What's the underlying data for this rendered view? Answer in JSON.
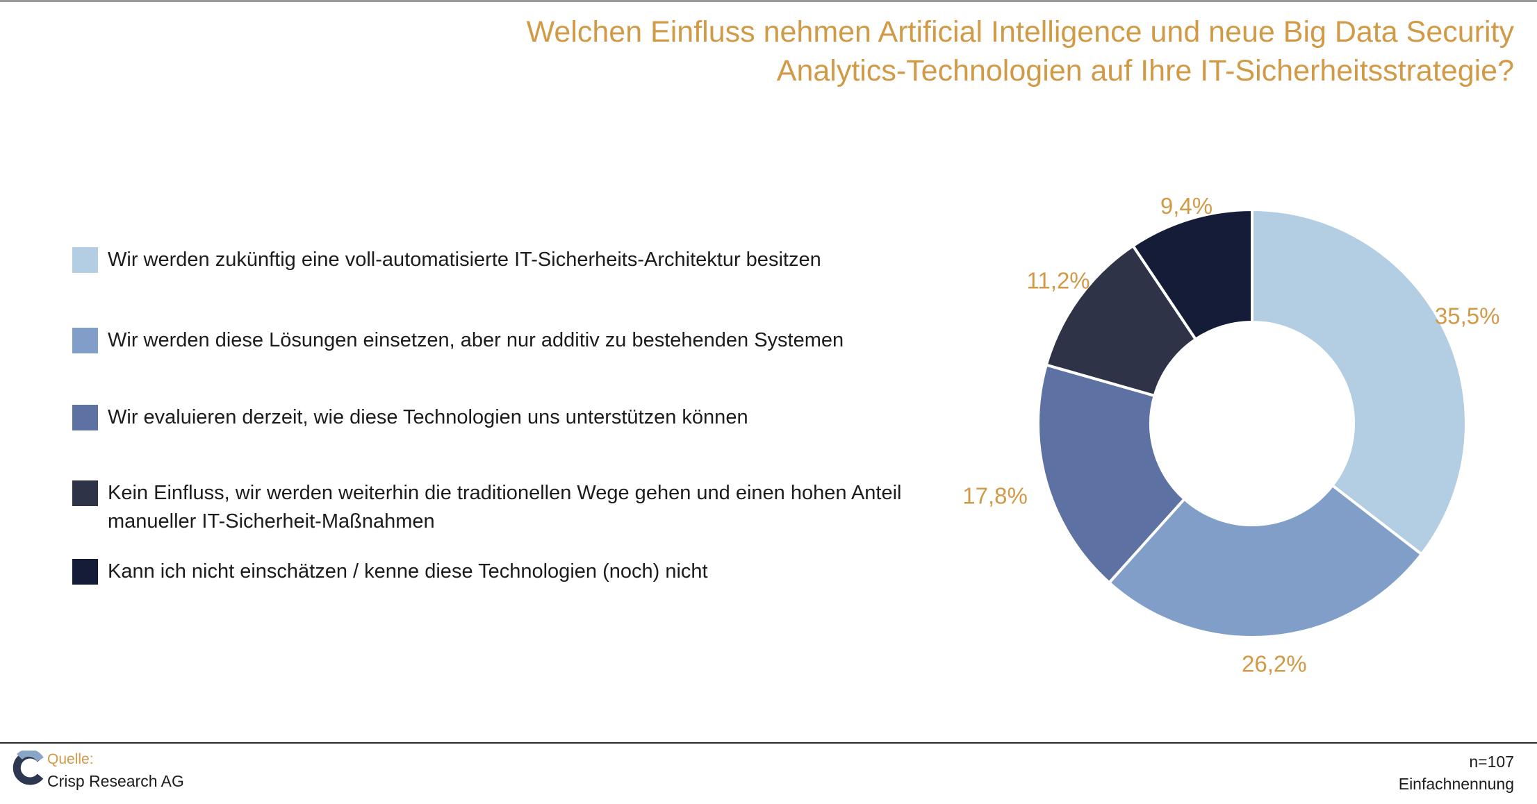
{
  "title": {
    "line1": "Welchen Einfluss nehmen Artificial Intelligence und neue Big Data Security",
    "line2": "Analytics-Technologien auf Ihre IT-Sicherheitsstrategie?"
  },
  "chart_data": {
    "type": "pie",
    "variant": "donut",
    "title": "Welchen Einfluss nehmen Artificial Intelligence und neue Big Data Security Analytics-Technologien auf Ihre IT-Sicherheitsstrategie?",
    "legend_position": "left",
    "slices": [
      {
        "label": "Wir werden zukünftig eine voll-automatisierte IT-Sicherheits-Architektur besitzen",
        "value": 35.5,
        "display": "35,5%",
        "color": "#b3cde2"
      },
      {
        "label": "Wir werden diese Lösungen einsetzen, aber nur additiv zu bestehenden Systemen",
        "value": 26.2,
        "display": "26,2%",
        "color": "#809ec8"
      },
      {
        "label": "Wir evaluieren derzeit, wie diese Technologien uns unterstützen können",
        "value": 17.8,
        "display": "17,8%",
        "color": "#5e71a3"
      },
      {
        "label": "Kein Einfluss, wir werden weiterhin die traditionellen Wege gehen und einen hohen Anteil manueller IT-Sicherheit-Maßnahmen",
        "value": 11.2,
        "display": "11,2%",
        "color": "#2e3347"
      },
      {
        "label": "Kann ich nicht einschätzen / kenne diese Technologien (noch) nicht",
        "value": 9.4,
        "display": "9,4%",
        "color": "#141c38"
      }
    ]
  },
  "footer": {
    "source_label": "Quelle:",
    "source_name": "Crisp Research AG",
    "n": "n=107",
    "mode": "Einfachnennung"
  }
}
